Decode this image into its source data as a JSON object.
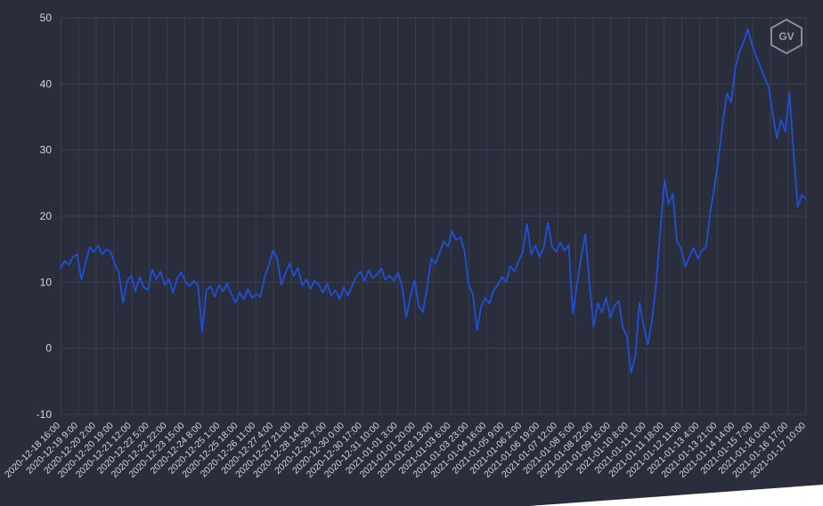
{
  "page": {
    "background": "#2a2e3c",
    "grid_color": "#3a3f50",
    "text_color": "#d2d6de",
    "line_color": "#1e4fd6",
    "logo_text": "GV"
  },
  "chart_data": {
    "type": "line",
    "grid": true,
    "legend": false,
    "ylim": [
      -10,
      50
    ],
    "y_ticks": [
      50,
      40,
      30,
      20,
      10,
      0,
      -10
    ],
    "x_start": "2020-12-18 16:00",
    "x_end": "2021-01-17 10:00",
    "x_tick_interval_hours": 17,
    "x_tick_labels": [
      "2020-12-18 16:00",
      "2020-12-19 9:00",
      "2020-12-20 2:00",
      "2020-12-20 19:00",
      "2020-12-21 12:00",
      "2020-12-22 5:00",
      "2020-12-22 22:00",
      "2020-12-23 15:00",
      "2020-12-24 8:00",
      "2020-12-25 1:00",
      "2020-12-25 18:00",
      "2020-12-26 11:00",
      "2020-12-27 4:00",
      "2020-12-27 21:00",
      "2020-12-28 14:00",
      "2020-12-29 7:00",
      "2020-12-30 0:00",
      "2020-12-30 17:00",
      "2020-12-31 10:00",
      "2021-01-01 3:00",
      "2021-01-01 20:00",
      "2021-01-02 13:00",
      "2021-01-03 6:00",
      "2021-01-03 23:00",
      "2021-01-04 16:00",
      "2021-01-05 9:00",
      "2021-01-06 2:00",
      "2021-01-06 19:00",
      "2021-01-07 12:00",
      "2021-01-08 5:00",
      "2021-01-08 22:00",
      "2021-01-09 15:00",
      "2021-01-10 8:00",
      "2021-01-11 1:00",
      "2021-01-11 18:00",
      "2021-01-12 11:00",
      "2021-01-13 4:00",
      "2021-01-13 21:00",
      "2021-01-14 14:00",
      "2021-01-15 7:00",
      "2021-01-16 0:00",
      "2021-01-16 17:00",
      "2021-01-17 10:00"
    ],
    "sample_interval_hours": 4,
    "values": [
      12.1,
      13.2,
      12.6,
      13.8,
      14.2,
      10.4,
      13.0,
      15.3,
      14.6,
      15.5,
      14.2,
      15.0,
      14.6,
      12.8,
      11.4,
      6.9,
      10.2,
      11.0,
      8.6,
      10.8,
      9.2,
      8.8,
      11.9,
      10.4,
      11.6,
      9.6,
      10.5,
      8.4,
      10.6,
      11.5,
      10.0,
      9.4,
      10.2,
      9.6,
      2.4,
      8.8,
      9.4,
      7.8,
      9.6,
      8.6,
      9.8,
      8.2,
      6.9,
      8.4,
      7.4,
      9.0,
      7.6,
      8.2,
      7.8,
      10.8,
      12.6,
      14.8,
      13.6,
      9.6,
      11.4,
      12.8,
      10.9,
      12.2,
      9.5,
      10.4,
      9.0,
      10.2,
      9.6,
      8.4,
      9.8,
      8.0,
      8.8,
      7.4,
      9.2,
      8.0,
      9.4,
      10.8,
      11.6,
      10.2,
      11.8,
      10.6,
      11.2,
      12.1,
      10.4,
      11.0,
      10.2,
      11.4,
      9.4,
      4.7,
      7.8,
      10.3,
      6.4,
      5.5,
      9.2,
      13.6,
      12.8,
      14.4,
      16.2,
      15.4,
      17.7,
      16.4,
      16.8,
      14.6,
      9.6,
      8.2,
      2.8,
      6.4,
      7.6,
      6.8,
      8.8,
      9.6,
      10.8,
      10.0,
      12.4,
      11.6,
      13.2,
      14.6,
      18.8,
      14.2,
      15.6,
      13.8,
      15.2,
      19.0,
      15.4,
      14.6,
      16.0,
      14.8,
      15.6,
      5.2,
      9.6,
      13.8,
      17.3,
      9.8,
      3.3,
      6.8,
      5.4,
      7.7,
      4.6,
      6.4,
      7.2,
      3.1,
      1.8,
      -3.7,
      -1.2,
      6.9,
      3.4,
      0.6,
      4.2,
      9.8,
      17.6,
      25.5,
      21.8,
      23.4,
      16.2,
      15.0,
      12.4,
      13.8,
      15.2,
      13.6,
      14.8,
      15.4,
      20.6,
      24.4,
      28.8,
      34.2,
      38.6,
      37.2,
      42.4,
      44.8,
      46.4,
      48.3,
      46.0,
      44.2,
      42.6,
      41.0,
      39.6,
      35.4,
      31.8,
      34.6,
      32.8,
      38.7,
      29.6,
      21.4,
      23.2,
      22.6
    ]
  }
}
